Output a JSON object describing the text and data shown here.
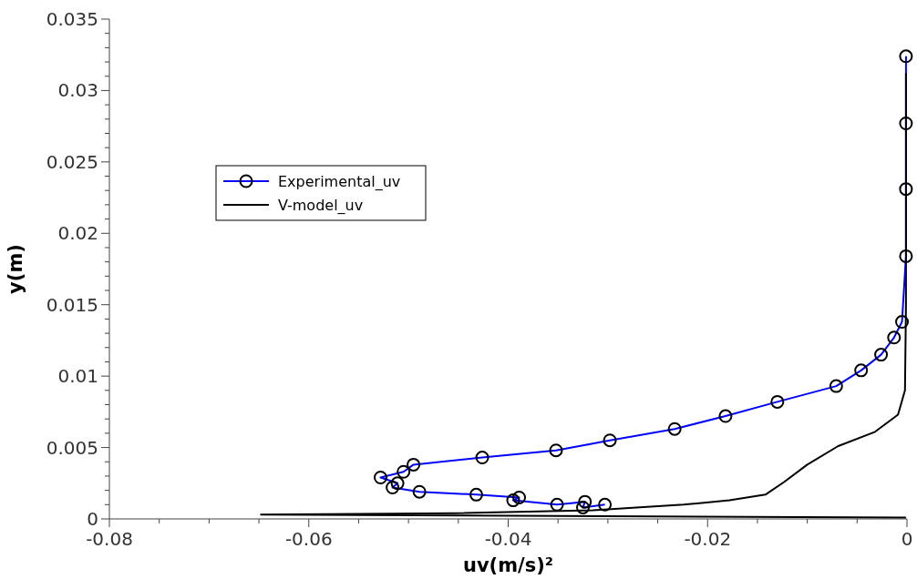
{
  "chart_data": {
    "type": "line",
    "xlabel": "uv(m/s)²",
    "ylabel": "y(m)",
    "xlim": [
      -0.08,
      0
    ],
    "ylim": [
      0,
      0.035
    ],
    "xticks": [
      -0.08,
      {
        "value": -0.075,
        "label": null
      },
      {
        "value": -0.07,
        "label": null
      },
      {
        "value": -0.065,
        "label": null
      },
      -0.06,
      {
        "value": -0.055,
        "label": null
      },
      {
        "value": -0.05,
        "label": null
      },
      {
        "value": -0.045,
        "label": null
      },
      -0.04,
      {
        "value": -0.035,
        "label": null
      },
      {
        "value": -0.03,
        "label": null
      },
      {
        "value": -0.025,
        "label": null
      },
      -0.02,
      {
        "value": -0.015,
        "label": null
      },
      {
        "value": -0.01,
        "label": null
      },
      {
        "value": -0.005,
        "label": null
      },
      0
    ],
    "yticks": [
      0,
      {
        "value": 0.001,
        "label": null
      },
      {
        "value": 0.002,
        "label": null
      },
      {
        "value": 0.003,
        "label": null
      },
      {
        "value": 0.004,
        "label": null
      },
      0.005,
      {
        "value": 0.006,
        "label": null
      },
      {
        "value": 0.007,
        "label": null
      },
      {
        "value": 0.008,
        "label": null
      },
      {
        "value": 0.009,
        "label": null
      },
      0.01,
      {
        "value": 0.011,
        "label": null
      },
      {
        "value": 0.012,
        "label": null
      },
      {
        "value": 0.013,
        "label": null
      },
      {
        "value": 0.014,
        "label": null
      },
      0.015,
      {
        "value": 0.016,
        "label": null
      },
      {
        "value": 0.017,
        "label": null
      },
      {
        "value": 0.018,
        "label": null
      },
      {
        "value": 0.019,
        "label": null
      },
      0.02,
      {
        "value": 0.021,
        "label": null
      },
      {
        "value": 0.022,
        "label": null
      },
      {
        "value": 0.023,
        "label": null
      },
      {
        "value": 0.024,
        "label": null
      },
      0.025,
      {
        "value": 0.026,
        "label": null
      },
      {
        "value": 0.027,
        "label": null
      },
      {
        "value": 0.028,
        "label": null
      },
      {
        "value": 0.029,
        "label": null
      },
      0.03,
      {
        "value": 0.031,
        "label": null
      },
      {
        "value": 0.032,
        "label": null
      },
      {
        "value": 0.033,
        "label": null
      },
      {
        "value": 0.034,
        "label": null
      },
      0.035
    ],
    "grid": false,
    "legend": "top left",
    "line_style": "solid",
    "series": [
      {
        "name": "Experimental_uv",
        "color": "#0000ff",
        "marker": "circle",
        "x": [
          -0.0001,
          -0.0001,
          -0.0001,
          -0.0001,
          -0.0005,
          -0.0013,
          -0.0026,
          -0.0046,
          -0.0071,
          -0.013,
          -0.0182,
          -0.0233,
          -0.0298,
          -0.0352,
          -0.0426,
          -0.0495,
          -0.0505,
          -0.0528,
          -0.0511,
          -0.0516,
          -0.0489,
          -0.0432,
          -0.0389,
          -0.0395,
          -0.0351,
          -0.0323,
          -0.0325,
          -0.0303
        ],
        "values": [
          0.0324,
          0.0277,
          0.0231,
          0.0184,
          0.0138,
          0.0127,
          0.0115,
          0.0104,
          0.0093,
          0.0082,
          0.0072,
          0.0063,
          0.0055,
          0.0048,
          0.0043,
          0.0038,
          0.0033,
          0.0029,
          0.0025,
          0.0022,
          0.0019,
          0.0017,
          0.0015,
          0.0013,
          0.001,
          0.0012,
          0.0008,
          0.001
        ]
      },
      {
        "name": "V-model_uv",
        "color": "#000000",
        "marker": "none",
        "x": [
          -0.0001,
          -0.035,
          -0.0648,
          -0.0453,
          -0.0315,
          -0.0224,
          -0.0178,
          -0.0142,
          -0.0123,
          -0.01,
          -0.0069,
          -0.0032,
          -0.0009,
          -0.0002,
          -0.0001,
          -0.0001
        ],
        "values": [
          0.0001,
          0.0002,
          0.0003,
          0.0004,
          0.0006,
          0.001,
          0.0013,
          0.0017,
          0.0026,
          0.0038,
          0.0051,
          0.0061,
          0.0073,
          0.009,
          0.015,
          0.0312
        ]
      }
    ]
  }
}
